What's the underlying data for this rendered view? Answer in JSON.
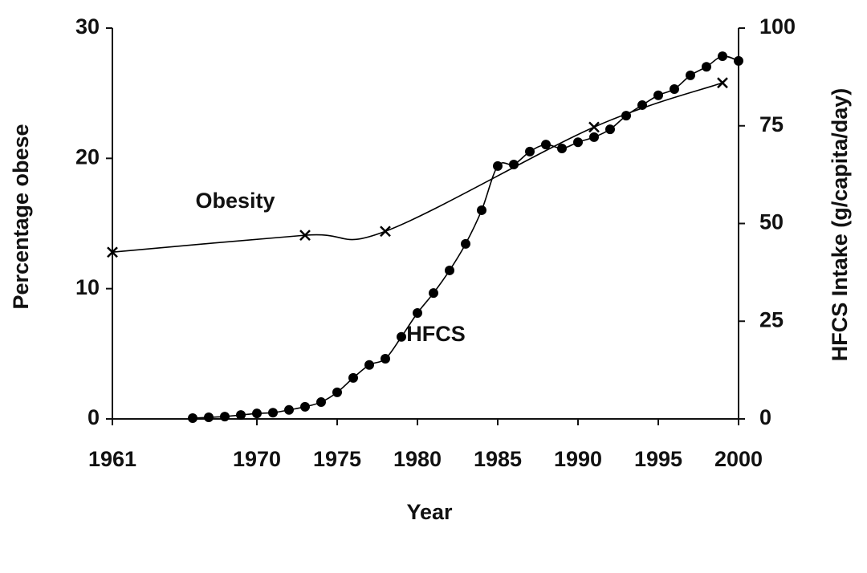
{
  "chart_data": {
    "type": "line",
    "xlabel": "Year",
    "ylabel": "Percentage obese",
    "y2label": "HFCS Intake (g/capita/day)",
    "annotations": [
      "Obesity",
      "HFCS"
    ],
    "xlim": [
      1961,
      2000
    ],
    "xticks": [
      1961,
      1970,
      1975,
      1980,
      1985,
      1990,
      1995,
      2000
    ],
    "ylim": [
      0,
      30
    ],
    "yticks": [
      0,
      10,
      20,
      30
    ],
    "y2lim": [
      0,
      100
    ],
    "y2ticks": [
      0,
      25,
      50,
      75,
      100
    ],
    "series": [
      {
        "name": "Obesity",
        "color": "#000000",
        "marker": "x",
        "x": [
          1961,
          1973,
          1978,
          1991,
          1999
        ],
        "values": [
          12.8,
          14.1,
          14.4,
          22.4,
          25.8
        ]
      },
      {
        "name": "HFCS",
        "color": "#000000",
        "marker": "circle",
        "axis": "y2",
        "x": [
          1966,
          1967,
          1968,
          1969,
          1970,
          1971,
          1972,
          1973,
          1974,
          1975,
          1976,
          1977,
          1978,
          1979,
          1980,
          1981,
          1982,
          1983,
          1984,
          1985,
          1986,
          1987,
          1988,
          1989,
          1990,
          1991,
          1992,
          1993,
          1994,
          1995,
          1996,
          1997,
          1998,
          1999,
          2000
        ],
        "values": [
          0.2,
          0.4,
          0.6,
          1.0,
          1.4,
          1.6,
          2.3,
          3.1,
          4.3,
          6.8,
          10.5,
          13.8,
          15.4,
          21,
          27.1,
          32.2,
          38,
          44.8,
          53.4,
          64.7,
          65.1,
          68.4,
          70.2,
          69.2,
          70.8,
          72.1,
          74.1,
          77.6,
          80.3,
          82.8,
          84.4,
          87.9,
          90.1,
          92.8,
          91.6
        ]
      }
    ]
  }
}
